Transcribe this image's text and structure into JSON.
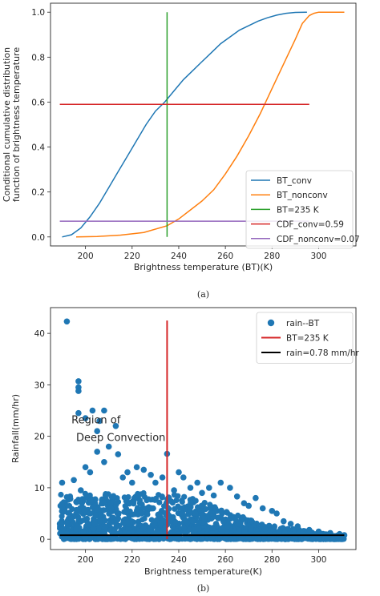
{
  "chart_data": [
    {
      "type": "line",
      "caption": "(a)",
      "xlabel": "Brightness temperature (BT)(K)",
      "ylabel_lines": [
        "Conditional cumulative distribution",
        "function of brightness temperature"
      ],
      "xlim": [
        185,
        316
      ],
      "ylim": [
        -0.04,
        1.04
      ],
      "xticks": [
        200,
        220,
        240,
        260,
        280,
        300
      ],
      "yticks": [
        0.0,
        0.2,
        0.4,
        0.6,
        0.8,
        1.0
      ],
      "legend_position": "lower-right",
      "series": [
        {
          "name": "BT_conv",
          "color": "#1f77b4",
          "x": [
            190,
            194,
            198,
            202,
            206,
            210,
            214,
            218,
            222,
            226,
            230,
            234,
            238,
            242,
            246,
            250,
            254,
            258,
            262,
            266,
            270,
            274,
            278,
            282,
            286,
            290,
            295
          ],
          "y": [
            0.0,
            0.01,
            0.04,
            0.09,
            0.15,
            0.22,
            0.29,
            0.36,
            0.43,
            0.5,
            0.56,
            0.6,
            0.65,
            0.7,
            0.74,
            0.78,
            0.82,
            0.86,
            0.89,
            0.92,
            0.94,
            0.96,
            0.975,
            0.987,
            0.995,
            0.999,
            1.0
          ]
        },
        {
          "name": "BT_nonconv",
          "color": "#ff7f0e",
          "x": [
            196,
            205,
            215,
            225,
            235,
            240,
            245,
            250,
            255,
            260,
            265,
            270,
            275,
            280,
            285,
            290,
            293,
            296,
            298,
            300,
            303,
            306,
            311
          ],
          "y": [
            0.0,
            0.002,
            0.008,
            0.02,
            0.05,
            0.08,
            0.12,
            0.16,
            0.21,
            0.28,
            0.36,
            0.45,
            0.55,
            0.66,
            0.77,
            0.88,
            0.95,
            0.985,
            0.995,
            1.0,
            1.0,
            1.0,
            1.0
          ]
        },
        {
          "name": "BT=235 K",
          "color": "#2ca02c",
          "x": [
            235,
            235
          ],
          "y": [
            0.0,
            1.0
          ]
        },
        {
          "name": "CDF_conv=0.59",
          "color": "#d62728",
          "x": [
            189,
            296
          ],
          "y": [
            0.59,
            0.59
          ]
        },
        {
          "name": "CDF_nonconv=0.07",
          "color": "#9467bd",
          "x": [
            189,
            296
          ],
          "y": [
            0.07,
            0.07
          ]
        }
      ]
    },
    {
      "type": "scatter",
      "caption": "(b)",
      "xlabel": "Brightness temperature(K)",
      "ylabel": "Rainfall(mm/hr)",
      "xlim": [
        185,
        316
      ],
      "ylim": [
        -2,
        45
      ],
      "xticks": [
        200,
        220,
        240,
        260,
        280,
        300
      ],
      "yticks": [
        0,
        10,
        20,
        30,
        40
      ],
      "legend_position": "upper-right",
      "annotation_lines": [
        "Region of",
        "Deep Convection"
      ],
      "series": [
        {
          "name": "rain--BT",
          "color": "#1f77b4",
          "points": [
            [
              192,
              42.3
            ],
            [
              197,
              30.7
            ],
            [
              197,
              29.5
            ],
            [
              197,
              28.8
            ],
            [
              203,
              25
            ],
            [
              197,
              24.5
            ],
            [
              200,
              23.5
            ],
            [
              208,
              25
            ],
            [
              206,
              23
            ],
            [
              213,
              22
            ],
            [
              205,
              21
            ],
            [
              235,
              16.6
            ],
            [
              190,
              11
            ],
            [
              192,
              8.2
            ],
            [
              195,
              11.5
            ],
            [
              198,
              9.5
            ],
            [
              190,
              6.2
            ],
            [
              200,
              14
            ],
            [
              202,
              13
            ],
            [
              205,
              17
            ],
            [
              208,
              15
            ],
            [
              210,
              18
            ],
            [
              214,
              16.5
            ],
            [
              216,
              12
            ],
            [
              218,
              13
            ],
            [
              220,
              11
            ],
            [
              222,
              14
            ],
            [
              225,
              13.5
            ],
            [
              228,
              12.5
            ],
            [
              230,
              11
            ],
            [
              233,
              12
            ],
            [
              238,
              9.5
            ],
            [
              240,
              13
            ],
            [
              242,
              12
            ],
            [
              245,
              10
            ],
            [
              248,
              11
            ],
            [
              250,
              9
            ],
            [
              253,
              10
            ],
            [
              255,
              8.5
            ],
            [
              258,
              11
            ],
            [
              262,
              10
            ],
            [
              265,
              8.3
            ],
            [
              268,
              7
            ],
            [
              270,
              6.5
            ],
            [
              273,
              8
            ],
            [
              276,
              6
            ],
            [
              280,
              5.5
            ],
            [
              282,
              5
            ],
            [
              285,
              3.5
            ],
            [
              288,
              3
            ],
            [
              291,
              2.5
            ],
            [
              296,
              1.8
            ],
            [
              300,
              1.5
            ],
            [
              305,
              1.2
            ],
            [
              309,
              1
            ],
            [
              311,
              0.8
            ],
            [
              189,
              3
            ],
            [
              194,
              4
            ],
            [
              196,
              2
            ],
            [
              199,
              1.5
            ],
            [
              202,
              5
            ],
            [
              204,
              3
            ],
            [
              211,
              6
            ],
            [
              214,
              4
            ],
            [
              219,
              3
            ],
            [
              224,
              5
            ],
            [
              229,
              6
            ],
            [
              236,
              4
            ],
            [
              241,
              5
            ],
            [
              246,
              3.5
            ],
            [
              251,
              4
            ],
            [
              256,
              3
            ],
            [
              261,
              2.5
            ],
            [
              266,
              3
            ],
            [
              271,
              2
            ],
            [
              277,
              2
            ],
            [
              283,
              1.5
            ],
            [
              288,
              1
            ],
            [
              293,
              1
            ],
            [
              298,
              0.8
            ],
            [
              303,
              0.6
            ],
            [
              190,
              0.8
            ],
            [
              195,
              0.6
            ],
            [
              200,
              0.4
            ],
            [
              206,
              0.2
            ],
            [
              212,
              0.1
            ],
            [
              218,
              0.5
            ],
            [
              224,
              0.3
            ],
            [
              230,
              0.2
            ],
            [
              240,
              0.4
            ],
            [
              250,
              0.3
            ],
            [
              260,
              0.2
            ],
            [
              270,
              0.4
            ],
            [
              280,
              0.3
            ],
            [
              290,
              0.2
            ],
            [
              300,
              0.2
            ],
            [
              306,
              0.1
            ]
          ]
        },
        {
          "name": "BT=235 K",
          "color": "#d62728",
          "x": [
            235,
            235
          ],
          "y": [
            0,
            42.5
          ]
        },
        {
          "name": "rain=0.78 mm/hr",
          "color": "#000000",
          "x": [
            189,
            311
          ],
          "y": [
            0.78,
            0.78
          ]
        }
      ]
    }
  ]
}
